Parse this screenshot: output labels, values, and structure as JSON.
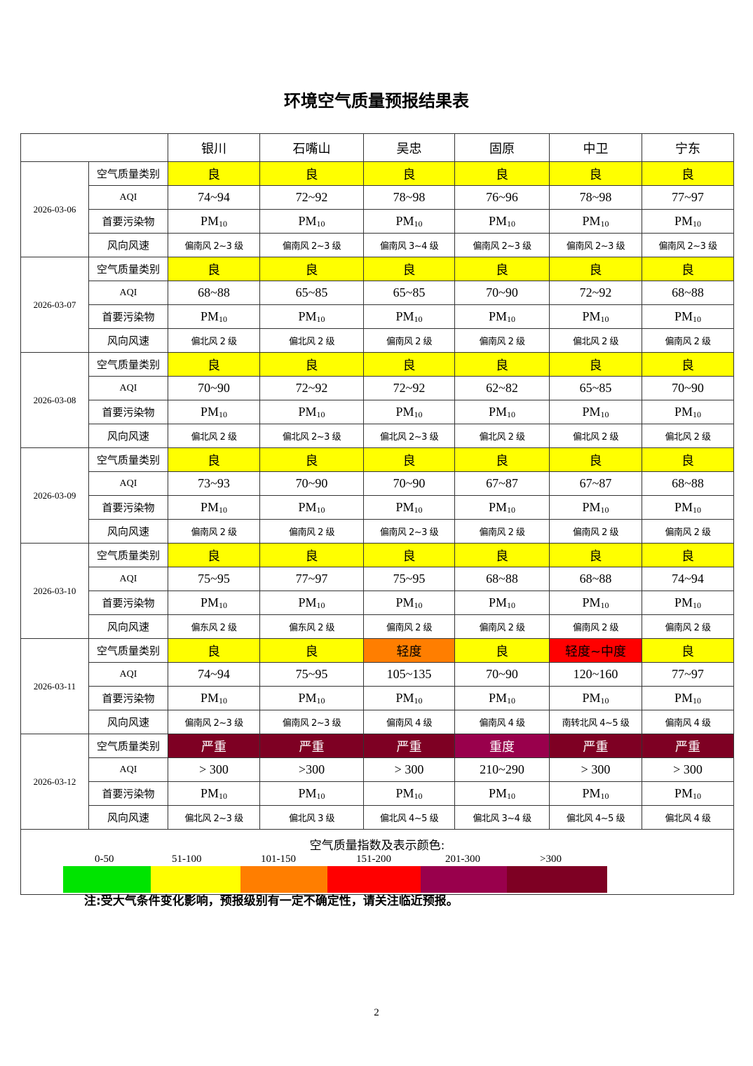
{
  "title": "环境空气质量预报结果表",
  "cities": [
    "银川",
    "石嘴山",
    "吴忠",
    "固原",
    "中卫",
    "宁东"
  ],
  "row_labels": {
    "category": "空气质量类别",
    "aqi": "AQI",
    "pollutant": "首要污染物",
    "wind": "风向风速"
  },
  "category_colors": {
    "良": "#ffff00",
    "轻度": "#ff7e00",
    "轻度~中度": "#ff0000",
    "重度": "#99004c",
    "严重": "#7e0023"
  },
  "pollutant": {
    "base": "PM",
    "sub": "10"
  },
  "days": [
    {
      "date": "2026-03-06",
      "category": [
        "良",
        "良",
        "良",
        "良",
        "良",
        "良"
      ],
      "aqi": [
        "74~94",
        "72~92",
        "78~98",
        "76~96",
        "78~98",
        "77~97"
      ],
      "wind": [
        "偏南风 2~3 级",
        "偏南风 2~3 级",
        "偏南风 3~4 级",
        "偏南风 2~3 级",
        "偏南风 2~3 级",
        "偏南风 2~3 级"
      ]
    },
    {
      "date": "2026-03-07",
      "category": [
        "良",
        "良",
        "良",
        "良",
        "良",
        "良"
      ],
      "aqi": [
        "68~88",
        "65~85",
        "65~85",
        "70~90",
        "72~92",
        "68~88"
      ],
      "wind": [
        "偏北风 2 级",
        "偏北风 2 级",
        "偏南风 2 级",
        "偏南风 2 级",
        "偏北风 2 级",
        "偏南风 2 级"
      ]
    },
    {
      "date": "2026-03-08",
      "category": [
        "良",
        "良",
        "良",
        "良",
        "良",
        "良"
      ],
      "aqi": [
        "70~90",
        "72~92",
        "72~92",
        "62~82",
        "65~85",
        "70~90"
      ],
      "wind": [
        "偏北风 2 级",
        "偏北风 2~3 级",
        "偏北风 2~3 级",
        "偏北风 2 级",
        "偏北风 2 级",
        "偏北风 2 级"
      ]
    },
    {
      "date": "2026-03-09",
      "category": [
        "良",
        "良",
        "良",
        "良",
        "良",
        "良"
      ],
      "aqi": [
        "73~93",
        "70~90",
        "70~90",
        "67~87",
        "67~87",
        "68~88"
      ],
      "wind": [
        "偏南风 2 级",
        "偏南风 2 级",
        "偏南风 2~3 级",
        "偏南风 2 级",
        "偏南风 2 级",
        "偏南风 2 级"
      ]
    },
    {
      "date": "2026-03-10",
      "category": [
        "良",
        "良",
        "良",
        "良",
        "良",
        "良"
      ],
      "aqi": [
        "75~95",
        "77~97",
        "75~95",
        "68~88",
        "68~88",
        "74~94"
      ],
      "wind": [
        "偏东风 2 级",
        "偏东风 2 级",
        "偏南风 2 级",
        "偏南风 2 级",
        "偏南风 2 级",
        "偏南风 2 级"
      ]
    },
    {
      "date": "2026-03-11",
      "category": [
        "良",
        "良",
        "轻度",
        "良",
        "轻度~中度",
        "良"
      ],
      "aqi": [
        "74~94",
        "75~95",
        "105~135",
        "70~90",
        "120~160",
        "77~97"
      ],
      "wind": [
        "偏南风 2~3 级",
        "偏南风 2~3 级",
        "偏南风 4 级",
        "偏南风 4 级",
        "南转北风 4~5 级",
        "偏南风 4 级"
      ]
    },
    {
      "date": "2026-03-12",
      "category": [
        "严重",
        "严重",
        "严重",
        "重度",
        "严重",
        "严重"
      ],
      "aqi": [
        "> 300",
        ">300",
        "> 300",
        "210~290",
        "> 300",
        "> 300"
      ],
      "wind": [
        "偏北风 2~3 级",
        "偏北风 3 级",
        "偏北风 4~5 级",
        "偏北风 3~4 级",
        "偏北风 4~5 级",
        "偏北风 4 级"
      ]
    }
  ],
  "legend": {
    "title": "空气质量指数及表示颜色:",
    "items": [
      {
        "range": "0-50",
        "color": "#00e400"
      },
      {
        "range": "51-100",
        "color": "#ffff00"
      },
      {
        "range": "101-150",
        "color": "#ff7e00"
      },
      {
        "range": "151-200",
        "color": "#ff0000"
      },
      {
        "range": "201-300",
        "color": "#99004c"
      },
      {
        "range": ">300",
        "color": "#7e0023"
      }
    ]
  },
  "note": "注:受大气条件变化影响，预报级别有一定不确定性，请关注临近预报。",
  "page_number": "2"
}
